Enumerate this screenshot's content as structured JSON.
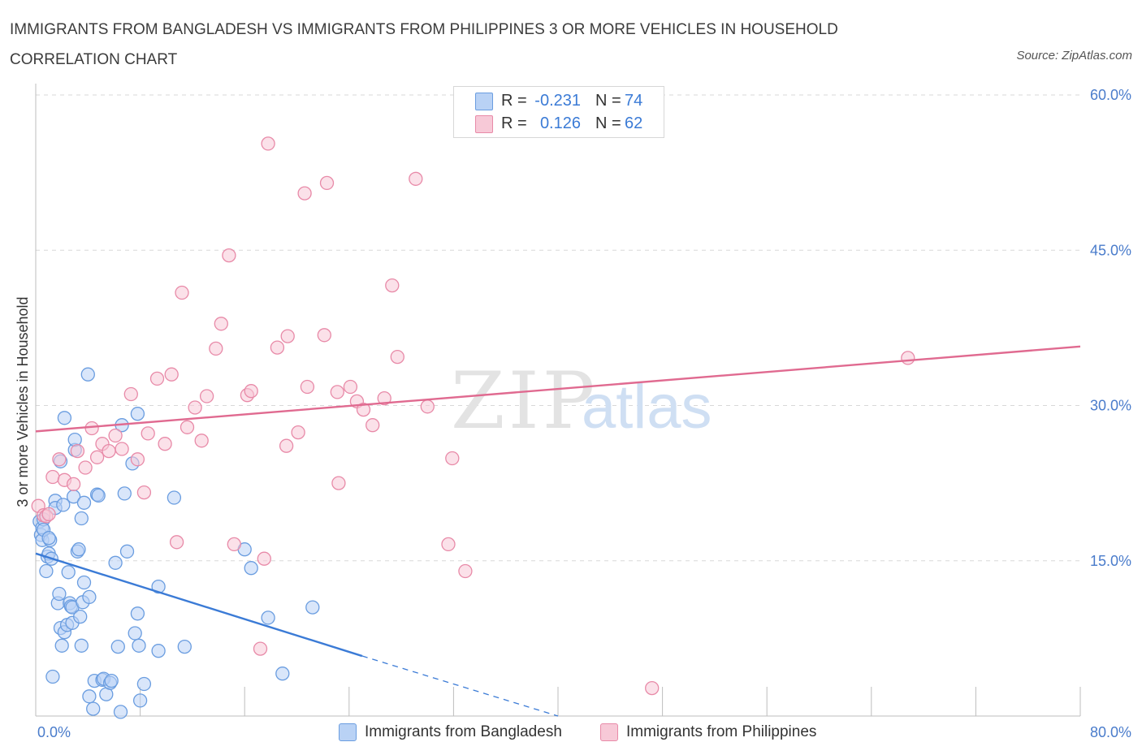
{
  "title": "IMMIGRANTS FROM BANGLADESH VS IMMIGRANTS FROM PHILIPPINES 3 OR MORE VEHICLES IN HOUSEHOLD CORRELATION CHART",
  "source": "Source: ZipAtlas.com",
  "watermark": {
    "zip": "ZIP",
    "atlas": "atlas"
  },
  "colors": {
    "blue": "#6a9de0",
    "blue_fill": "#b9d2f5",
    "blue_line": "#3b7bd6",
    "pink": "#e88aa8",
    "pink_fill": "#f7c9d7",
    "pink_line": "#e06a90",
    "axis_text": "#4a7ccb",
    "grid": "#d8d8d8"
  },
  "legend_top": [
    {
      "r_label": "R =",
      "r_value": "-0.231",
      "n_label": "N =",
      "n_value": "74"
    },
    {
      "r_label": "R =",
      "r_value": "0.126",
      "n_label": "N =",
      "n_value": "62"
    }
  ],
  "legend_bottom": [
    {
      "label": "Immigrants from Bangladesh"
    },
    {
      "label": "Immigrants from Philippines"
    }
  ],
  "chart_data": {
    "type": "scatter",
    "ylabel": "3 or more Vehicles in Household",
    "xlabel": "",
    "xlim": [
      0,
      80
    ],
    "ylim": [
      0,
      60
    ],
    "x_tick_labels": [
      "0.0%",
      "80.0%"
    ],
    "y_ticks": [
      15,
      30,
      45,
      60
    ],
    "y_tick_labels": [
      "15.0%",
      "30.0%",
      "45.0%",
      "60.0%"
    ],
    "grid": true,
    "legend_position": "top-center",
    "series": [
      {
        "name": "Immigrants from Bangladesh",
        "color": "blue",
        "trend": {
          "x": [
            0,
            25
          ],
          "y": [
            15.7,
            5.8
          ],
          "dashed_to": [
            40,
            0
          ]
        },
        "points": [
          [
            0.3,
            18.8
          ],
          [
            0.4,
            17.5
          ],
          [
            0.5,
            18.2
          ],
          [
            0.6,
            19.0
          ],
          [
            0.5,
            17.0
          ],
          [
            0.8,
            14.0
          ],
          [
            0.9,
            15.4
          ],
          [
            1.0,
            15.7
          ],
          [
            1.2,
            15.2
          ],
          [
            1.1,
            17.0
          ],
          [
            1.3,
            3.8
          ],
          [
            1.5,
            20.8
          ],
          [
            1.5,
            20.1
          ],
          [
            1.7,
            10.9
          ],
          [
            1.8,
            11.8
          ],
          [
            1.9,
            24.6
          ],
          [
            1.9,
            8.5
          ],
          [
            2.0,
            6.8
          ],
          [
            2.1,
            20.4
          ],
          [
            2.2,
            8.1
          ],
          [
            2.2,
            28.8
          ],
          [
            2.4,
            8.8
          ],
          [
            2.5,
            13.9
          ],
          [
            2.6,
            10.9
          ],
          [
            2.7,
            10.6
          ],
          [
            2.8,
            10.5
          ],
          [
            2.8,
            9.0
          ],
          [
            2.9,
            21.2
          ],
          [
            3.0,
            25.7
          ],
          [
            3.0,
            26.7
          ],
          [
            3.2,
            15.9
          ],
          [
            3.3,
            16.1
          ],
          [
            3.4,
            9.6
          ],
          [
            3.5,
            19.1
          ],
          [
            3.5,
            6.8
          ],
          [
            3.6,
            11.0
          ],
          [
            3.7,
            20.6
          ],
          [
            3.7,
            12.9
          ],
          [
            4.1,
            11.5
          ],
          [
            4.1,
            1.9
          ],
          [
            4.0,
            33.0
          ],
          [
            4.4,
            0.7
          ],
          [
            4.5,
            3.4
          ],
          [
            4.7,
            21.4
          ],
          [
            4.8,
            21.3
          ],
          [
            5.1,
            3.5
          ],
          [
            5.2,
            3.6
          ],
          [
            5.4,
            2.1
          ],
          [
            5.7,
            3.2
          ],
          [
            5.8,
            3.4
          ],
          [
            6.1,
            14.8
          ],
          [
            6.3,
            6.7
          ],
          [
            6.5,
            0.4
          ],
          [
            6.6,
            28.1
          ],
          [
            6.8,
            21.5
          ],
          [
            7.0,
            15.9
          ],
          [
            7.4,
            24.4
          ],
          [
            7.6,
            8.0
          ],
          [
            7.8,
            29.2
          ],
          [
            7.8,
            9.9
          ],
          [
            7.9,
            6.8
          ],
          [
            8.0,
            1.5
          ],
          [
            8.3,
            3.1
          ],
          [
            9.4,
            6.3
          ],
          [
            9.4,
            12.5
          ],
          [
            10.6,
            21.1
          ],
          [
            11.4,
            6.7
          ],
          [
            16.0,
            16.1
          ],
          [
            16.5,
            14.3
          ],
          [
            17.8,
            9.5
          ],
          [
            18.9,
            4.1
          ],
          [
            21.2,
            10.5
          ],
          [
            0.6,
            18.0
          ],
          [
            1.0,
            17.2
          ]
        ]
      },
      {
        "name": "Immigrants from Philippines",
        "color": "pink",
        "trend": {
          "x": [
            0,
            80
          ],
          "y": [
            27.5,
            35.7
          ]
        },
        "points": [
          [
            0.2,
            20.3
          ],
          [
            0.6,
            19.4
          ],
          [
            0.8,
            19.3
          ],
          [
            1.0,
            19.5
          ],
          [
            1.3,
            23.1
          ],
          [
            1.8,
            24.8
          ],
          [
            2.2,
            22.8
          ],
          [
            2.9,
            22.4
          ],
          [
            3.2,
            25.6
          ],
          [
            3.8,
            24.0
          ],
          [
            4.3,
            27.8
          ],
          [
            4.7,
            25.0
          ],
          [
            5.1,
            26.3
          ],
          [
            5.6,
            25.6
          ],
          [
            6.1,
            27.1
          ],
          [
            6.6,
            25.8
          ],
          [
            7.3,
            31.1
          ],
          [
            7.8,
            24.8
          ],
          [
            8.3,
            21.6
          ],
          [
            8.6,
            27.3
          ],
          [
            9.3,
            32.6
          ],
          [
            9.9,
            26.3
          ],
          [
            10.4,
            33.0
          ],
          [
            10.8,
            16.8
          ],
          [
            11.2,
            40.9
          ],
          [
            11.6,
            27.9
          ],
          [
            12.2,
            29.8
          ],
          [
            12.7,
            26.6
          ],
          [
            13.1,
            30.9
          ],
          [
            13.8,
            35.5
          ],
          [
            14.2,
            37.9
          ],
          [
            14.8,
            44.5
          ],
          [
            15.2,
            16.6
          ],
          [
            16.2,
            31.0
          ],
          [
            16.5,
            31.4
          ],
          [
            17.2,
            6.5
          ],
          [
            17.5,
            15.2
          ],
          [
            17.8,
            55.3
          ],
          [
            18.5,
            35.6
          ],
          [
            19.2,
            26.1
          ],
          [
            19.3,
            36.7
          ],
          [
            20.1,
            27.4
          ],
          [
            20.8,
            31.8
          ],
          [
            20.6,
            50.5
          ],
          [
            22.1,
            36.8
          ],
          [
            22.3,
            51.5
          ],
          [
            23.1,
            31.3
          ],
          [
            23.2,
            22.5
          ],
          [
            24.1,
            31.8
          ],
          [
            24.6,
            30.4
          ],
          [
            25.1,
            29.6
          ],
          [
            25.8,
            28.1
          ],
          [
            26.7,
            30.7
          ],
          [
            27.3,
            41.6
          ],
          [
            27.7,
            34.7
          ],
          [
            29.1,
            51.9
          ],
          [
            30.0,
            29.9
          ],
          [
            31.6,
            16.6
          ],
          [
            31.9,
            24.9
          ],
          [
            32.9,
            14.0
          ],
          [
            47.2,
            2.7
          ],
          [
            66.8,
            34.6
          ]
        ]
      }
    ]
  }
}
